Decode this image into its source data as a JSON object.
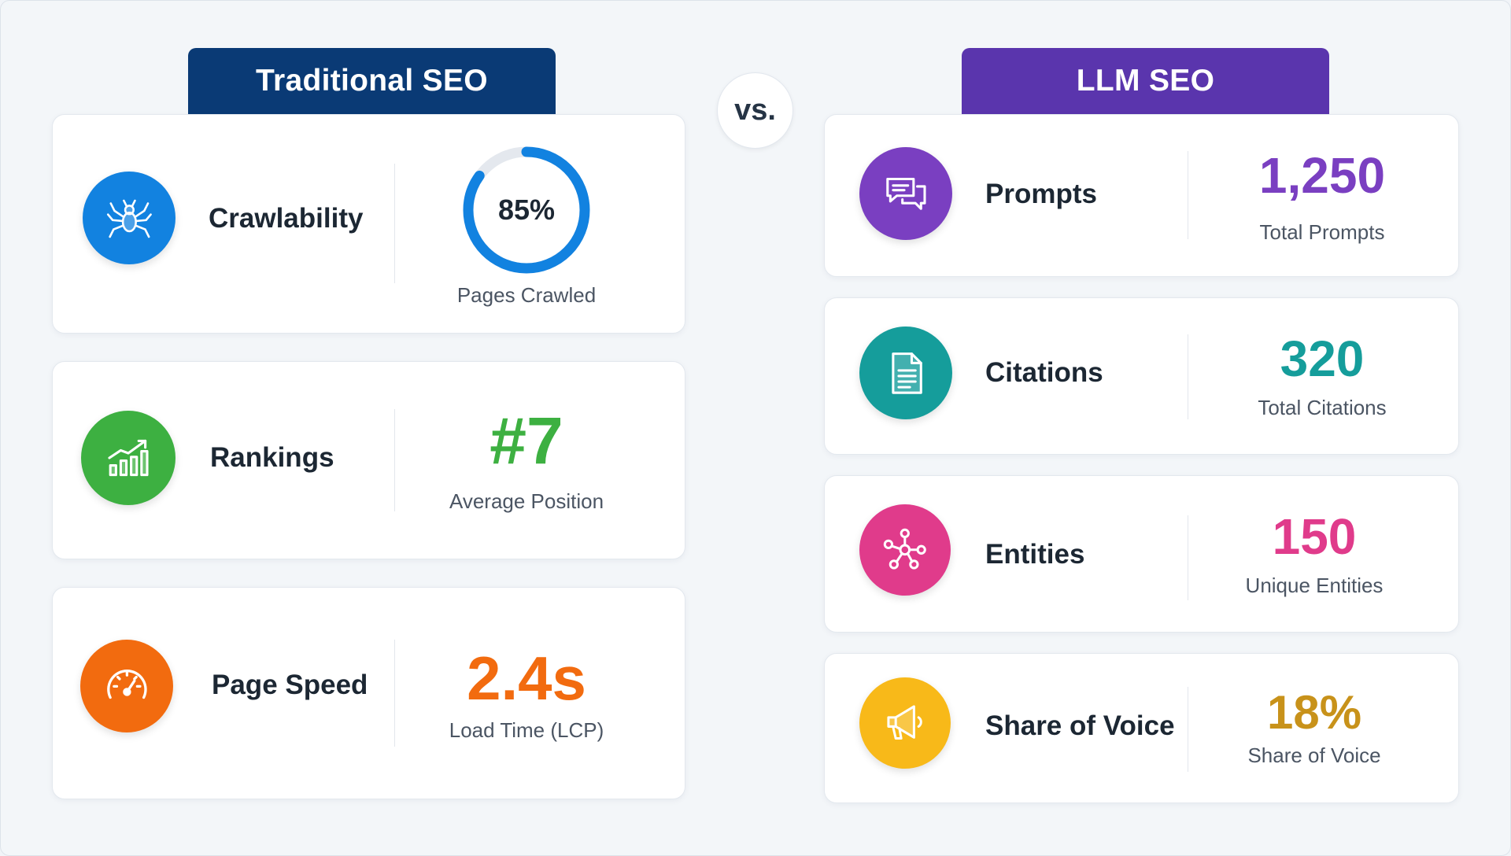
{
  "left": {
    "title": "Traditional SEO",
    "cards": [
      {
        "label": "Crawlability",
        "value": "85%",
        "sub": "Pages Crawled",
        "icon": "spider-icon",
        "color": "#1282e0",
        "progress": 0.85
      },
      {
        "label": "Rankings",
        "value": "#7",
        "sub": "Average Position",
        "icon": "chart-growth-icon",
        "color": "#3db041"
      },
      {
        "label": "Page Speed",
        "value": "2.4s",
        "sub": "Load Time (LCP)",
        "icon": "speedometer-icon",
        "color": "#f26b0f"
      }
    ]
  },
  "vs_label": "vs.",
  "right": {
    "title": "LLM SEO",
    "cards": [
      {
        "label": "Prompts",
        "value": "1,250",
        "sub": "Total Prompts",
        "icon": "chat-bubbles-icon",
        "color": "#7a3fc1"
      },
      {
        "label": "Citations",
        "value": "320",
        "sub": "Total Citations",
        "icon": "document-icon",
        "color": "#159d9b"
      },
      {
        "label": "Entities",
        "value": "150",
        "sub": "Unique Entities",
        "icon": "network-nodes-icon",
        "color": "#e03b8b"
      },
      {
        "label": "Share of Voice",
        "value": "18%",
        "sub": "Share of Voice",
        "icon": "megaphone-icon",
        "color": "#c8921a"
      }
    ]
  },
  "colors": {
    "traditional_header": "#0a3a75",
    "llm_header": "#5a35ad",
    "megaphone_icon_bg": "#f8b919"
  }
}
